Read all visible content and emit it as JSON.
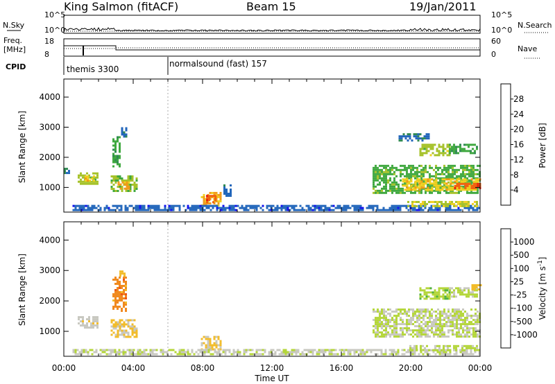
{
  "header": {
    "station": "King Salmon (fitACF)",
    "beam": "Beam 15",
    "date": "19/Jan/2011"
  },
  "strip": {
    "nsky_label": "N.Sky",
    "nsky_ticks": [
      "10^5",
      "10^0"
    ],
    "nsearch_label": "N.Search",
    "nsearch_ticks": [
      "10^5",
      "10^0"
    ],
    "freq_label_1": "Freq.",
    "freq_label_2": "[MHz]",
    "freq_ticks": [
      "18",
      "8"
    ],
    "nave_label": "Nave",
    "nave_ticks": [
      "60",
      "0"
    ],
    "cpid_label": "CPID",
    "cpid_segments": [
      {
        "label": "themis 3300",
        "start_hour": 0.0,
        "end_hour": 6.0
      },
      {
        "label": "normalsound (fast) 157",
        "start_hour": 6.0,
        "end_hour": 24.0
      }
    ]
  },
  "xaxis": {
    "label": "Time UT",
    "ticks": [
      "00:00",
      "04:00",
      "08:00",
      "12:00",
      "16:00",
      "20:00",
      "00:00"
    ],
    "range_hours": [
      0,
      24
    ]
  },
  "chart_data": [
    {
      "type": "heatmap",
      "title": "",
      "xlabel": "Time UT",
      "ylabel": "Slant Range [km]",
      "xlim_hours": [
        0,
        24
      ],
      "ylim_km": [
        180,
        4600
      ],
      "yticks": [
        "4000",
        "3000",
        "2000",
        "1000"
      ],
      "colorbar": {
        "label": "Power [dB]",
        "ticks": [
          "28",
          "24",
          "20",
          "16",
          "12",
          "8",
          "4"
        ],
        "range": [
          0,
          32
        ],
        "colors": [
          "#1010ee",
          "#2266bb",
          "#2f8a52",
          "#3fa83f",
          "#a6c22a",
          "#f0d020",
          "#f29a18",
          "#f06010",
          "#e81e0c"
        ]
      },
      "regions": [
        {
          "t0": 0.0,
          "t1": 0.3,
          "r0": 1450,
          "r1": 1650,
          "value": 8
        },
        {
          "t0": 0.8,
          "t1": 1.9,
          "r0": 1100,
          "r1": 1500,
          "value": 16
        },
        {
          "t0": 1.2,
          "t1": 1.7,
          "r0": 1200,
          "r1": 1400,
          "value": 20
        },
        {
          "t0": 2.7,
          "t1": 4.2,
          "r0": 850,
          "r1": 1400,
          "value": 15
        },
        {
          "t0": 3.1,
          "t1": 3.8,
          "r0": 950,
          "r1": 1200,
          "value": 22
        },
        {
          "t0": 2.8,
          "t1": 3.2,
          "r0": 1700,
          "r1": 2700,
          "value": 12
        },
        {
          "t0": 3.3,
          "t1": 3.6,
          "r0": 2700,
          "r1": 3000,
          "value": 6
        },
        {
          "t0": 7.9,
          "t1": 9.1,
          "r0": 400,
          "r1": 850,
          "value": 22
        },
        {
          "t0": 8.2,
          "t1": 8.8,
          "r0": 480,
          "r1": 750,
          "value": 28
        },
        {
          "t0": 9.2,
          "t1": 9.6,
          "r0": 750,
          "r1": 1100,
          "value": 6
        },
        {
          "t0": 0.5,
          "t1": 24.0,
          "r0": 220,
          "r1": 420,
          "value": 5
        },
        {
          "t0": 17.8,
          "t1": 24.0,
          "r0": 800,
          "r1": 1750,
          "value": 13
        },
        {
          "t0": 19.5,
          "t1": 24.0,
          "r0": 900,
          "r1": 1300,
          "value": 20
        },
        {
          "t0": 22.5,
          "t1": 24.0,
          "r0": 950,
          "r1": 1150,
          "value": 27
        },
        {
          "t0": 20.5,
          "t1": 22.3,
          "r0": 2100,
          "r1": 2450,
          "value": 16
        },
        {
          "t0": 22.2,
          "t1": 23.8,
          "r0": 2150,
          "r1": 2450,
          "value": 12
        },
        {
          "t0": 19.3,
          "t1": 21.0,
          "r0": 2550,
          "r1": 2800,
          "value": 6
        },
        {
          "t0": 19.8,
          "t1": 23.8,
          "r0": 380,
          "r1": 550,
          "value": 17
        }
      ]
    },
    {
      "type": "heatmap",
      "title": "",
      "xlabel": "Time UT",
      "ylabel": "Slant Range [km]",
      "xlim_hours": [
        0,
        24
      ],
      "ylim_km": [
        180,
        4600
      ],
      "yticks": [
        "4000",
        "3000",
        "2000",
        "1000"
      ],
      "colorbar": {
        "label": "Velocity [m s^-1]",
        "ticks": [
          "1000",
          "500",
          "100",
          "25",
          "-25",
          "-100",
          "-500",
          "-1000"
        ],
        "range": [
          -1200,
          1200
        ],
        "colors": [
          "#ee1010",
          "#ee5518",
          "#f08a20",
          "#f2bc2a",
          "#c8c8c0",
          "#b4d63a",
          "#4fb040",
          "#2f8f60",
          "#2f6fbb",
          "#1a3ad0"
        ]
      },
      "regions": [
        {
          "t0": 0.8,
          "t1": 1.9,
          "r0": 1100,
          "r1": 1500,
          "value": -150
        },
        {
          "t0": 2.7,
          "t1": 4.2,
          "r0": 850,
          "r1": 1400,
          "value": -250
        },
        {
          "t0": 2.8,
          "t1": 3.6,
          "r0": 1700,
          "r1": 2800,
          "value": -600
        },
        {
          "t0": 3.2,
          "t1": 3.5,
          "r0": 2800,
          "r1": 3000,
          "value": -400
        },
        {
          "t0": 7.9,
          "t1": 9.1,
          "r0": 400,
          "r1": 850,
          "value": -250
        },
        {
          "t0": 0.5,
          "t1": 24.0,
          "r0": 220,
          "r1": 420,
          "value": -60
        },
        {
          "t0": 17.8,
          "t1": 24.0,
          "r0": 800,
          "r1": 1750,
          "value": 0
        },
        {
          "t0": 20.5,
          "t1": 22.3,
          "r0": 2100,
          "r1": 2450,
          "value": 150
        },
        {
          "t0": 22.2,
          "t1": 23.8,
          "r0": 2150,
          "r1": 2450,
          "value": 60
        },
        {
          "t0": 23.5,
          "t1": 24.0,
          "r0": 2350,
          "r1": 2550,
          "value": -300
        },
        {
          "t0": 19.8,
          "t1": 23.8,
          "r0": 380,
          "r1": 550,
          "value": 80
        }
      ]
    }
  ]
}
